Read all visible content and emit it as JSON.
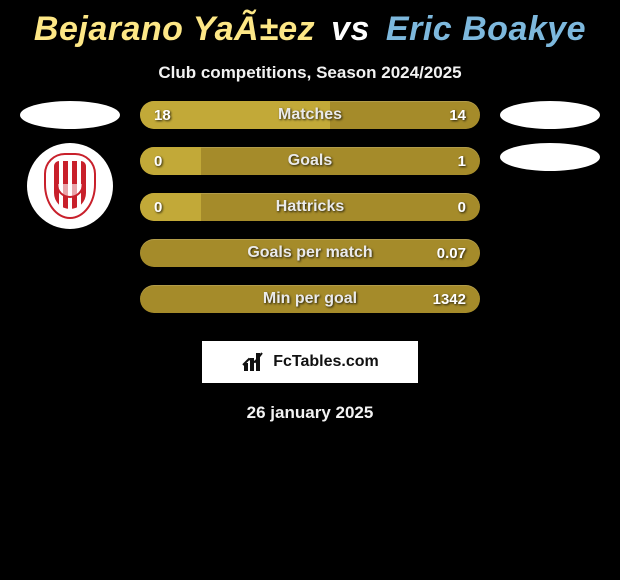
{
  "title": {
    "player1": "Bejarano YaÃ±ez",
    "vs": "vs",
    "player2": "Eric Boakye"
  },
  "subtitle": "Club competitions, Season 2024/2025",
  "date": "26 january 2025",
  "colors": {
    "background": "#000000",
    "player1_color": "#fde786",
    "player2_color": "#7db8dd",
    "bar_bg": "#a58b2a",
    "bar_fill": "#c2a938",
    "text_drop": "#ffffff",
    "logo_bg": "#ffffff"
  },
  "bars": [
    {
      "label": "Matches",
      "left": "18",
      "right": "14",
      "fill_pct": 56
    },
    {
      "label": "Goals",
      "left": "0",
      "right": "1",
      "fill_pct": 18
    },
    {
      "label": "Hattricks",
      "left": "0",
      "right": "0",
      "fill_pct": 18
    },
    {
      "label": "Goals per match",
      "left": "",
      "right": "0.07",
      "fill_pct": 0
    },
    {
      "label": "Min per goal",
      "left": "",
      "right": "1342",
      "fill_pct": 0
    }
  ],
  "brand": {
    "text": "FcTables.com"
  },
  "left_side": {
    "ellipses": 1,
    "crest": true
  },
  "right_side": {
    "ellipses": 2
  }
}
